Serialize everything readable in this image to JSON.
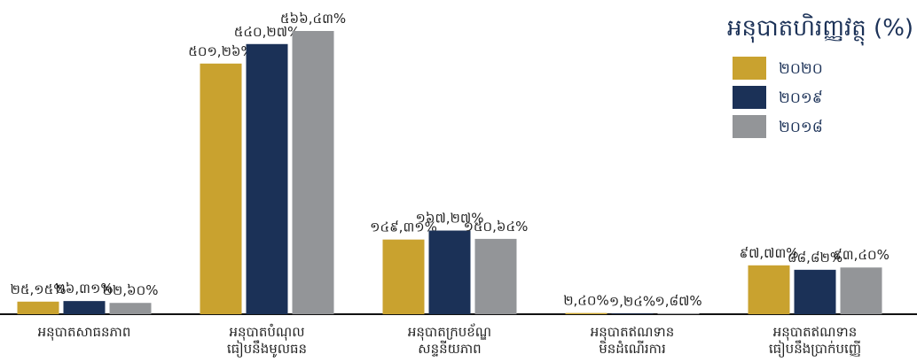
{
  "chart_data": {
    "type": "bar",
    "title": "អនុបាតហិរញ្ញវត្ថុ (%)",
    "categories": [
      "អនុបាតសាធនភាព",
      "អនុបាតបំណុល\nធៀបនឹងមូលធន",
      "អនុបាតក្របខ័ណ្ឌ\nសន្ទនីយភាព",
      "អនុបាតឥណទាន\nមិនដំណើរការ",
      "អនុបាតឥណទាន\nធៀបនឹងប្រាក់បញ្ញើ"
    ],
    "series": [
      {
        "name": "២០២០",
        "color": "#c9a22f",
        "values": [
          25.15,
          501.26,
          149.31,
          2.4,
          97.73
        ],
        "value_labels": [
          "២៥,១៥%",
          "៥០១,២៦%",
          "១៤៩,៣១%",
          "២,៤០%",
          "៩៧,៧៣%"
        ]
      },
      {
        "name": "២០១៩",
        "color": "#1b3157",
        "values": [
          26.31,
          540.27,
          167.27,
          1.24,
          88.82
        ],
        "value_labels": [
          "២៦,៣១%",
          "៥៤០,២៧%",
          "១៦៧,២៧%",
          "១,២៤%",
          "៨៨,៨២%"
        ]
      },
      {
        "name": "២០១៨",
        "color": "#939598",
        "values": [
          22.6,
          566.43,
          150.64,
          1.87,
          93.4
        ],
        "value_labels": [
          "២២,៦០%",
          "៥៦៦,៤៣%",
          "១៥០,៦៤%",
          "១,៨៧%",
          "៩៣,៤០%"
        ]
      }
    ],
    "legend": "top-right"
  }
}
